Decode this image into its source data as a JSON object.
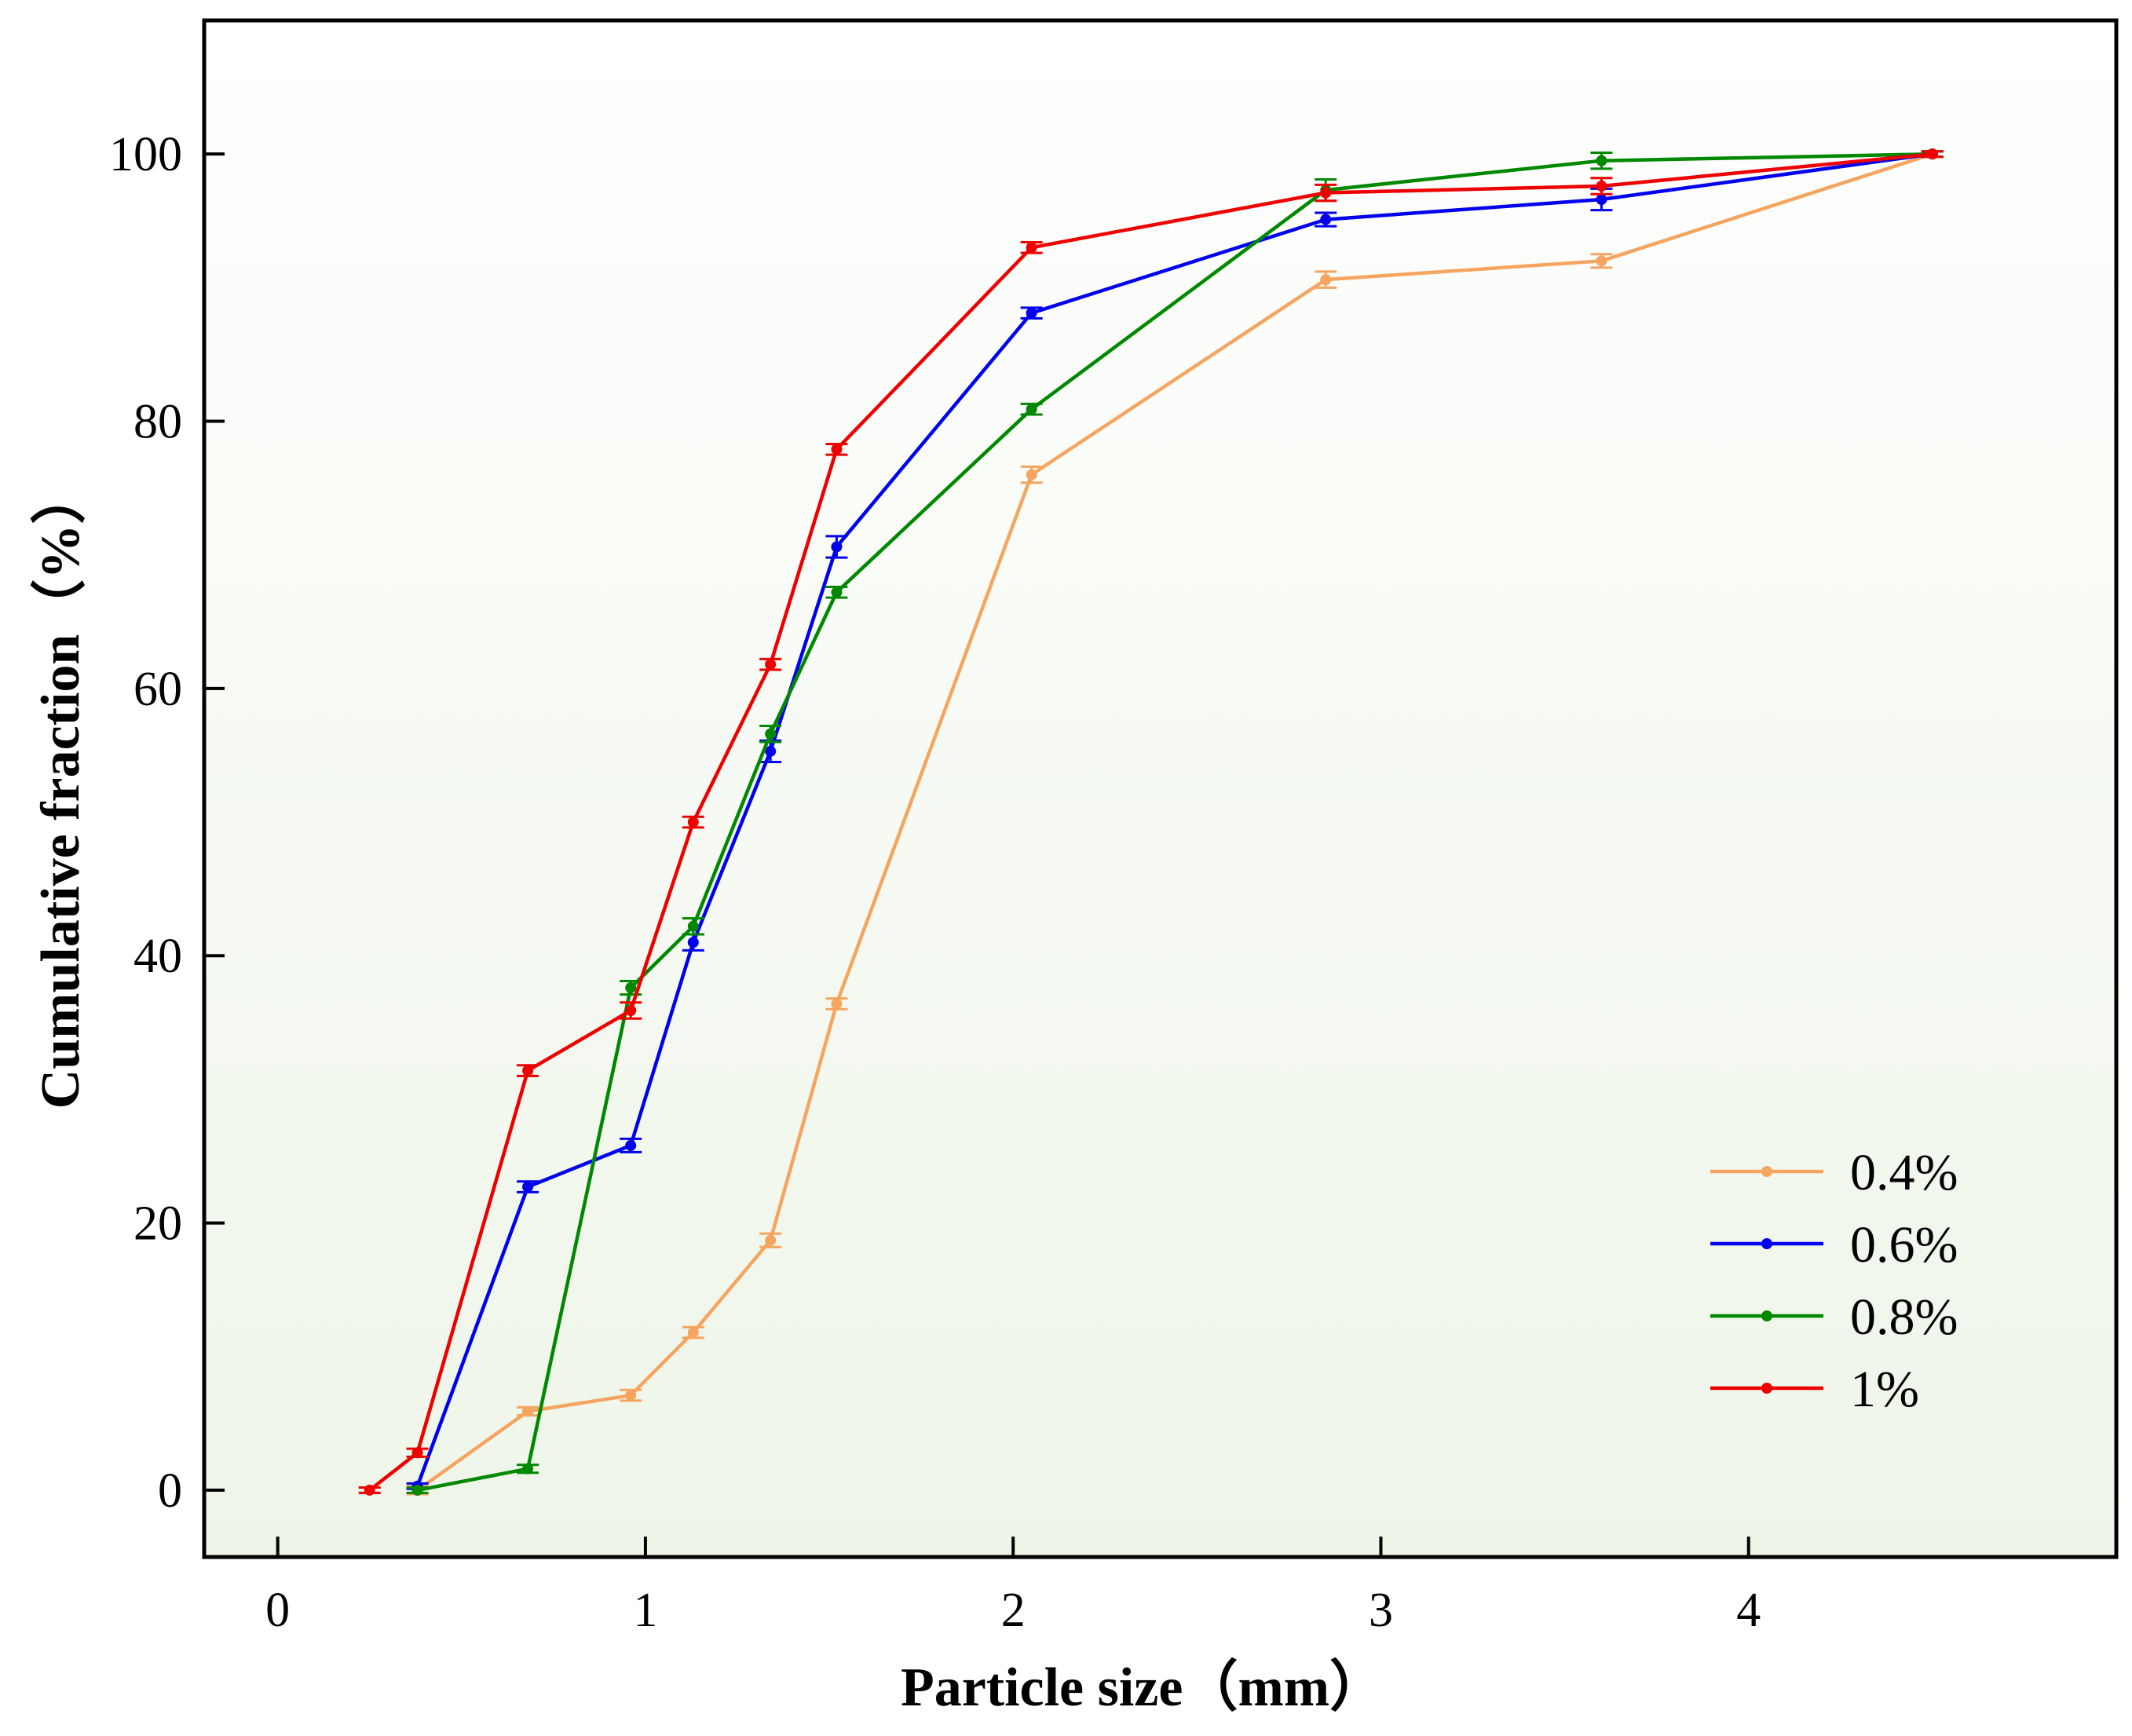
{
  "chart_data": {
    "type": "line",
    "title": "",
    "xlabel": "Particle size（mm）",
    "ylabel": "Cumulative fraction（%）",
    "xlim": [
      -0.2,
      5.0
    ],
    "ylim": [
      -5,
      110
    ],
    "xticks": [
      0,
      1,
      2,
      3,
      4
    ],
    "yticks": [
      0,
      20,
      40,
      60,
      80,
      100
    ],
    "xtick_labels": [
      "0",
      "1",
      "2",
      "3",
      "4"
    ],
    "ytick_labels": [
      "0",
      "20",
      "40",
      "60",
      "80",
      "100"
    ],
    "grid": false,
    "legend_position": "bottom-right",
    "series": [
      {
        "name": "0.4%",
        "color": "#f5a55f",
        "x": [
          0.38,
          0.68,
          0.96,
          1.13,
          1.34,
          1.52,
          2.05,
          2.85,
          3.6,
          4.5
        ],
        "y": [
          0,
          5.9,
          7.1,
          11.8,
          18.7,
          36.4,
          76.0,
          90.6,
          92.0,
          100
        ],
        "err": [
          0.3,
          0.3,
          0.4,
          0.4,
          0.5,
          0.4,
          0.6,
          0.6,
          0.5,
          0.2
        ]
      },
      {
        "name": "0.6%",
        "color": "#0000ee",
        "x": [
          0.38,
          0.68,
          0.96,
          1.13,
          1.34,
          1.52,
          2.05,
          2.85,
          3.6,
          4.5
        ],
        "y": [
          0.3,
          22.7,
          25.8,
          41.0,
          55.3,
          70.6,
          88.1,
          95.1,
          96.6,
          100
        ],
        "err": [
          0.2,
          0.4,
          0.5,
          0.6,
          0.8,
          0.8,
          0.4,
          0.5,
          0.8,
          0.2
        ]
      },
      {
        "name": "0.8%",
        "color": "#008800",
        "x": [
          0.38,
          0.68,
          0.96,
          1.13,
          1.34,
          1.52,
          2.05,
          2.85,
          3.6,
          4.5
        ],
        "y": [
          0,
          1.6,
          37.6,
          42.2,
          56.6,
          67.2,
          80.9,
          97.3,
          99.5,
          100
        ],
        "err": [
          0.2,
          0.3,
          0.5,
          0.6,
          0.6,
          0.4,
          0.4,
          0.8,
          0.6,
          0.2
        ]
      },
      {
        "name": "1%",
        "color": "#ee0000",
        "x": [
          0.25,
          0.38,
          0.68,
          0.96,
          1.13,
          1.34,
          1.52,
          2.05,
          2.85,
          3.6,
          4.5
        ],
        "y": [
          0,
          2.8,
          31.4,
          35.9,
          50.0,
          61.8,
          77.9,
          93.0,
          97.1,
          97.6,
          100
        ],
        "err": [
          0.2,
          0.3,
          0.4,
          0.6,
          0.4,
          0.4,
          0.4,
          0.4,
          0.6,
          0.6,
          0.2
        ]
      }
    ]
  }
}
